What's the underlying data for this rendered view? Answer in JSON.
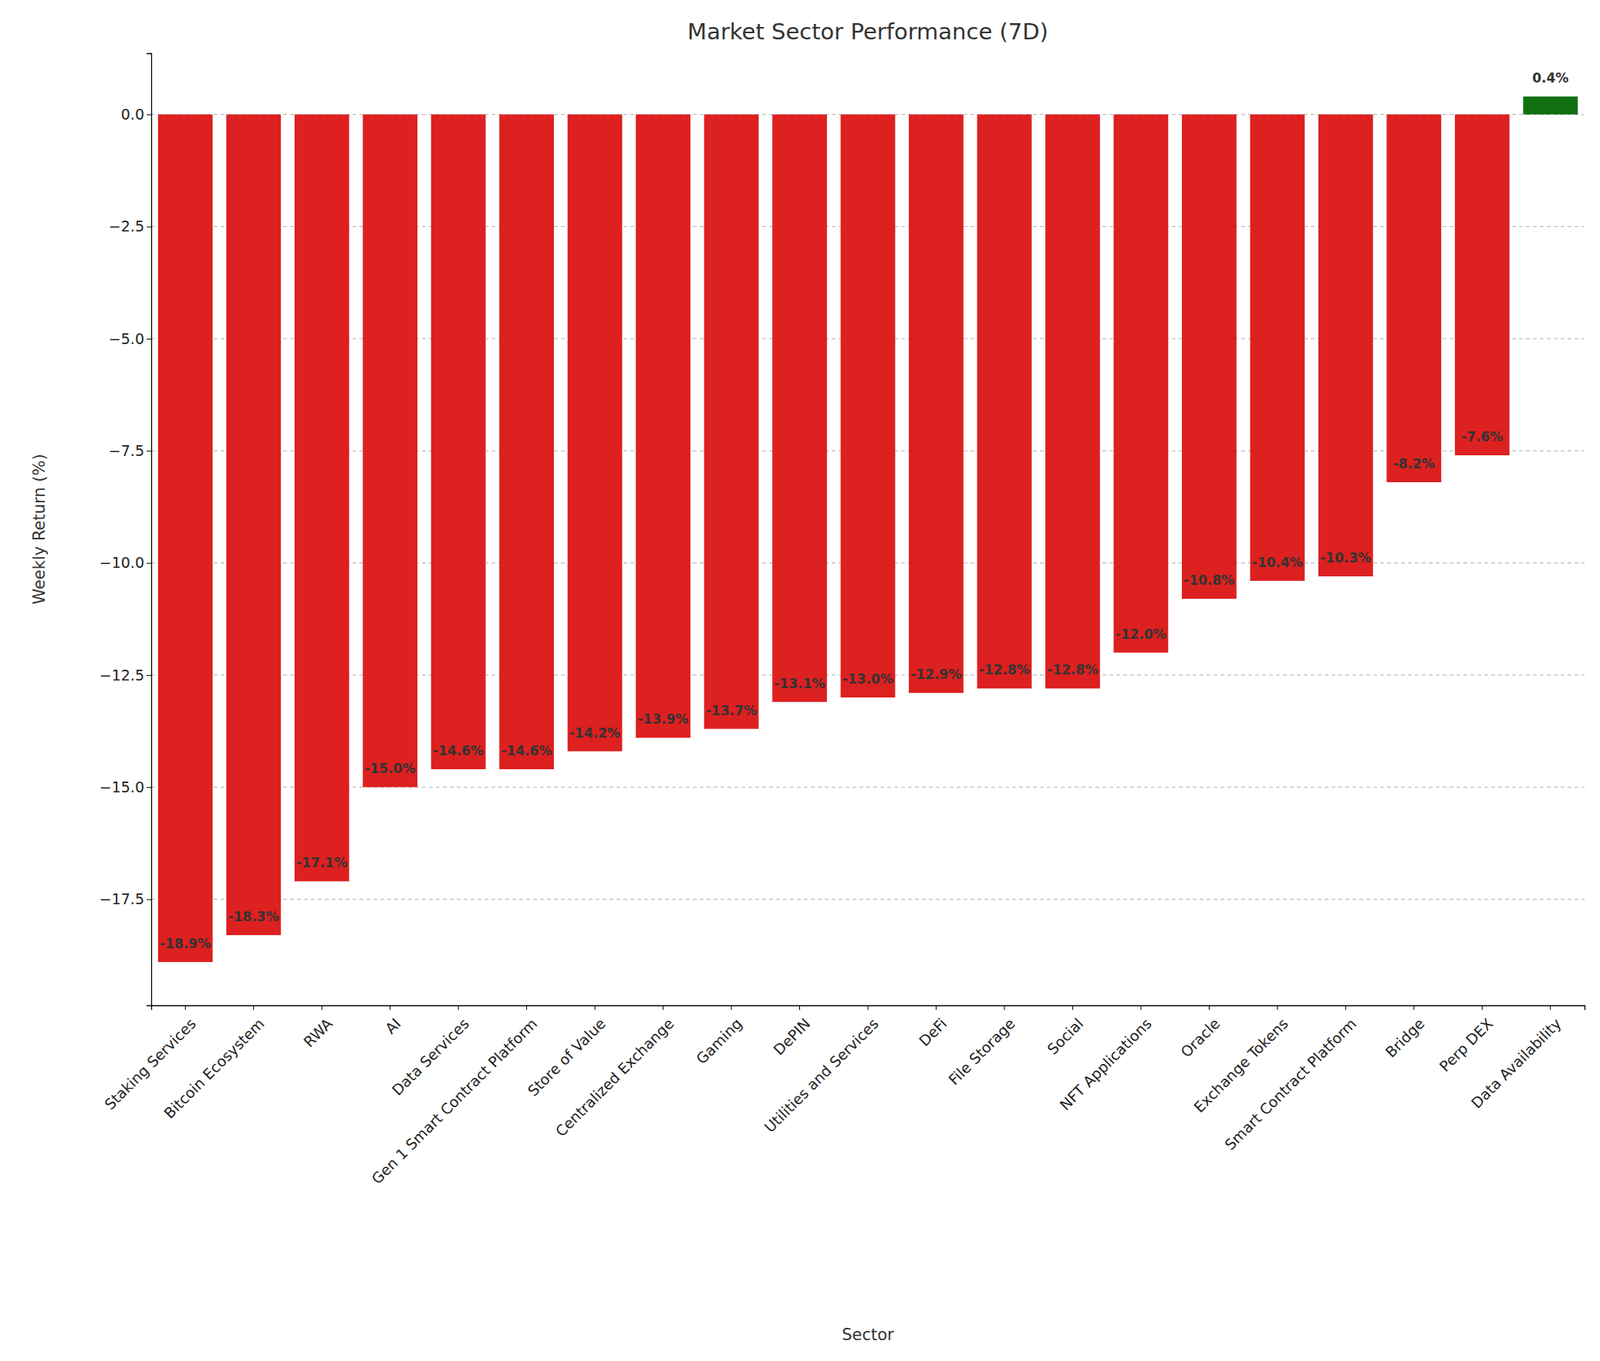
{
  "chart_data": {
    "type": "bar",
    "title": "Market Sector Performance (7D)",
    "x_label": "Sector",
    "y_label": "Weekly Return (%)",
    "categories": [
      "Staking Services",
      "Bitcoin Ecosystem",
      "RWA",
      "AI",
      "Data Services",
      "Gen 1 Smart Contract Platform",
      "Store of Value",
      "Centralized Exchange",
      "Gaming",
      "DePIN",
      "Utilities and Services",
      "DeFi",
      "File Storage",
      "Social",
      "NFT Applications",
      "Oracle",
      "Exchange Tokens",
      "Smart Contract Platform",
      "Bridge",
      "Perp DEX",
      "Data Availability"
    ],
    "values": [
      -18.9,
      -18.3,
      -17.1,
      -15.0,
      -14.6,
      -14.6,
      -14.2,
      -13.9,
      -13.7,
      -13.1,
      -13.0,
      -12.9,
      -12.8,
      -12.8,
      -12.0,
      -10.8,
      -10.4,
      -10.3,
      -8.2,
      -7.6,
      0.4
    ],
    "value_labels": [
      "-18.9%",
      "-18.3%",
      "-17.1%",
      "-15.0%",
      "-14.6%",
      "-14.6%",
      "-14.2%",
      "-13.9%",
      "-13.7%",
      "-13.1%",
      "-13.0%",
      "-12.9%",
      "-12.8%",
      "-12.8%",
      "-12.0%",
      "-10.8%",
      "-10.4%",
      "-10.3%",
      "-8.2%",
      "-7.6%",
      "0.4%"
    ],
    "colors": [
      "#dd2020",
      "#dd2020",
      "#dd2020",
      "#dd2020",
      "#dd2020",
      "#dd2020",
      "#dd2020",
      "#dd2020",
      "#dd2020",
      "#dd2020",
      "#dd2020",
      "#dd2020",
      "#dd2020",
      "#dd2020",
      "#dd2020",
      "#dd2020",
      "#dd2020",
      "#dd2020",
      "#dd2020",
      "#dd2020",
      "#107010"
    ],
    "ylim": [
      -19.865,
      1.365
    ],
    "yticks": [
      {
        "value": -17.5,
        "label": "−17.5"
      },
      {
        "value": -15,
        "label": "−15.0"
      },
      {
        "value": -12.5,
        "label": "−12.5"
      },
      {
        "value": -10,
        "label": "−10.0"
      },
      {
        "value": -7.5,
        "label": "−7.5"
      },
      {
        "value": -5,
        "label": "−5.0"
      },
      {
        "value": -2.5,
        "label": "−2.5"
      },
      {
        "value": 0,
        "label": "0.0"
      }
    ],
    "grid": true,
    "data_labels": true
  }
}
